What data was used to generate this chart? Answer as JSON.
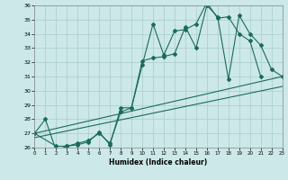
{
  "xlabel": "Humidex (Indice chaleur)",
  "bg_color": "#cce8e8",
  "grid_color": "#aacccc",
  "line_color": "#1a6b5a",
  "xlim": [
    0,
    23
  ],
  "ylim": [
    26,
    36
  ],
  "yticks": [
    26,
    27,
    28,
    29,
    30,
    31,
    32,
    33,
    34,
    35,
    36
  ],
  "xticks": [
    0,
    1,
    2,
    3,
    4,
    5,
    6,
    7,
    8,
    9,
    10,
    11,
    12,
    13,
    14,
    15,
    16,
    17,
    18,
    19,
    20,
    21,
    22,
    23
  ],
  "line1_x": [
    0,
    1,
    2,
    3,
    4,
    5,
    6,
    7,
    8,
    9,
    10,
    11,
    12,
    13,
    14,
    15,
    16,
    17,
    18,
    19,
    20,
    21
  ],
  "line1_y": [
    27.0,
    28.0,
    25.8,
    26.1,
    26.3,
    26.5,
    27.0,
    26.3,
    28.5,
    28.8,
    31.8,
    34.7,
    32.5,
    34.2,
    34.3,
    34.7,
    36.2,
    35.1,
    35.2,
    34.0,
    33.5,
    31.0
  ],
  "line2_x": [
    0,
    2,
    3,
    4,
    5,
    6,
    7,
    8,
    9,
    10,
    11,
    12,
    13,
    14,
    15,
    16,
    17,
    18,
    19,
    20,
    21,
    22,
    23
  ],
  "line2_y": [
    27.0,
    26.1,
    26.1,
    26.2,
    26.4,
    27.1,
    26.2,
    28.8,
    28.8,
    32.1,
    32.3,
    32.4,
    32.6,
    34.5,
    33.0,
    36.0,
    35.2,
    30.8,
    35.3,
    34.0,
    33.2,
    31.5,
    31.0
  ],
  "line3_x": [
    0,
    23
  ],
  "line3_y": [
    27.0,
    31.0
  ],
  "line4_x": [
    0,
    23
  ],
  "line4_y": [
    26.7,
    30.3
  ]
}
